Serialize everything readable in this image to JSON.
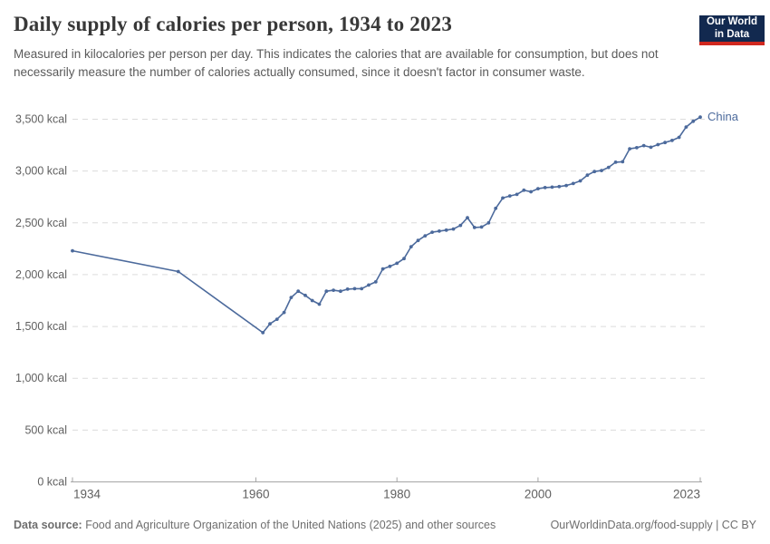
{
  "header": {
    "title": "Daily supply of calories per person, 1934 to 2023",
    "subtitle": "Measured in kilocalories per person per day. This indicates the calories that are available for consumption, but does not necessarily measure the number of calories actually consumed, since it doesn't factor in consumer waste.",
    "logo": {
      "line1": "Our World",
      "line2": "in Data",
      "bg_color": "#12294F",
      "stripe_color": "#D0281F",
      "text_color": "#ffffff"
    }
  },
  "chart_data": {
    "type": "line",
    "title": "Daily supply of calories per person, 1934 to 2023",
    "unit": "kcal",
    "xlabel": "",
    "ylabel": "",
    "xlim": [
      1934,
      2023
    ],
    "ylim": [
      0,
      3500
    ],
    "xticks": [
      1934,
      1960,
      1980,
      2000,
      2023
    ],
    "yticks": [
      0,
      500,
      1000,
      1500,
      2000,
      2500,
      3000,
      3500
    ],
    "ytick_labels": [
      "0 kcal",
      "500 kcal",
      "1,000 kcal",
      "1,500 kcal",
      "2,000 kcal",
      "2,500 kcal",
      "3,000 kcal",
      "3,500 kcal"
    ],
    "grid": "horizontal-dashed",
    "legend_position": "end-of-line-label",
    "series": [
      {
        "name": "China",
        "color": "#4C6A9C",
        "points": [
          [
            1934,
            2230
          ],
          [
            1949,
            2030
          ],
          [
            1961,
            1440
          ],
          [
            1962,
            1525
          ],
          [
            1963,
            1570
          ],
          [
            1964,
            1635
          ],
          [
            1965,
            1780
          ],
          [
            1966,
            1840
          ],
          [
            1967,
            1800
          ],
          [
            1968,
            1750
          ],
          [
            1969,
            1715
          ],
          [
            1970,
            1840
          ],
          [
            1971,
            1850
          ],
          [
            1972,
            1840
          ],
          [
            1973,
            1860
          ],
          [
            1974,
            1865
          ],
          [
            1975,
            1865
          ],
          [
            1976,
            1900
          ],
          [
            1977,
            1930
          ],
          [
            1978,
            2055
          ],
          [
            1979,
            2080
          ],
          [
            1980,
            2110
          ],
          [
            1981,
            2155
          ],
          [
            1982,
            2270
          ],
          [
            1983,
            2330
          ],
          [
            1984,
            2375
          ],
          [
            1985,
            2410
          ],
          [
            1986,
            2420
          ],
          [
            1987,
            2430
          ],
          [
            1988,
            2440
          ],
          [
            1989,
            2475
          ],
          [
            1990,
            2550
          ],
          [
            1991,
            2455
          ],
          [
            1992,
            2460
          ],
          [
            1993,
            2500
          ],
          [
            1994,
            2640
          ],
          [
            1995,
            2740
          ],
          [
            1996,
            2760
          ],
          [
            1997,
            2775
          ],
          [
            1998,
            2815
          ],
          [
            1999,
            2800
          ],
          [
            2000,
            2830
          ],
          [
            2001,
            2840
          ],
          [
            2002,
            2845
          ],
          [
            2003,
            2850
          ],
          [
            2004,
            2860
          ],
          [
            2005,
            2880
          ],
          [
            2006,
            2905
          ],
          [
            2007,
            2960
          ],
          [
            2008,
            2995
          ],
          [
            2009,
            3005
          ],
          [
            2010,
            3035
          ],
          [
            2011,
            3085
          ],
          [
            2012,
            3090
          ],
          [
            2013,
            3215
          ],
          [
            2014,
            3225
          ],
          [
            2015,
            3245
          ],
          [
            2016,
            3230
          ],
          [
            2017,
            3255
          ],
          [
            2018,
            3275
          ],
          [
            2019,
            3295
          ],
          [
            2020,
            3325
          ],
          [
            2021,
            3425
          ],
          [
            2022,
            3480
          ],
          [
            2023,
            3520
          ]
        ]
      }
    ]
  },
  "footer": {
    "datasource_label": "Data source:",
    "datasource_text": " Food and Agriculture Organization of the United Nations (2025) and other sources",
    "link_text": "OurWorldinData.org/food-supply | CC BY"
  },
  "colors": {
    "grid": "#dcdcdc",
    "axis": "#a5a5a5",
    "tick_label": "#606060",
    "title": "#383838",
    "subtitle": "#5a5a5a",
    "footer": "#6e6e6e"
  }
}
